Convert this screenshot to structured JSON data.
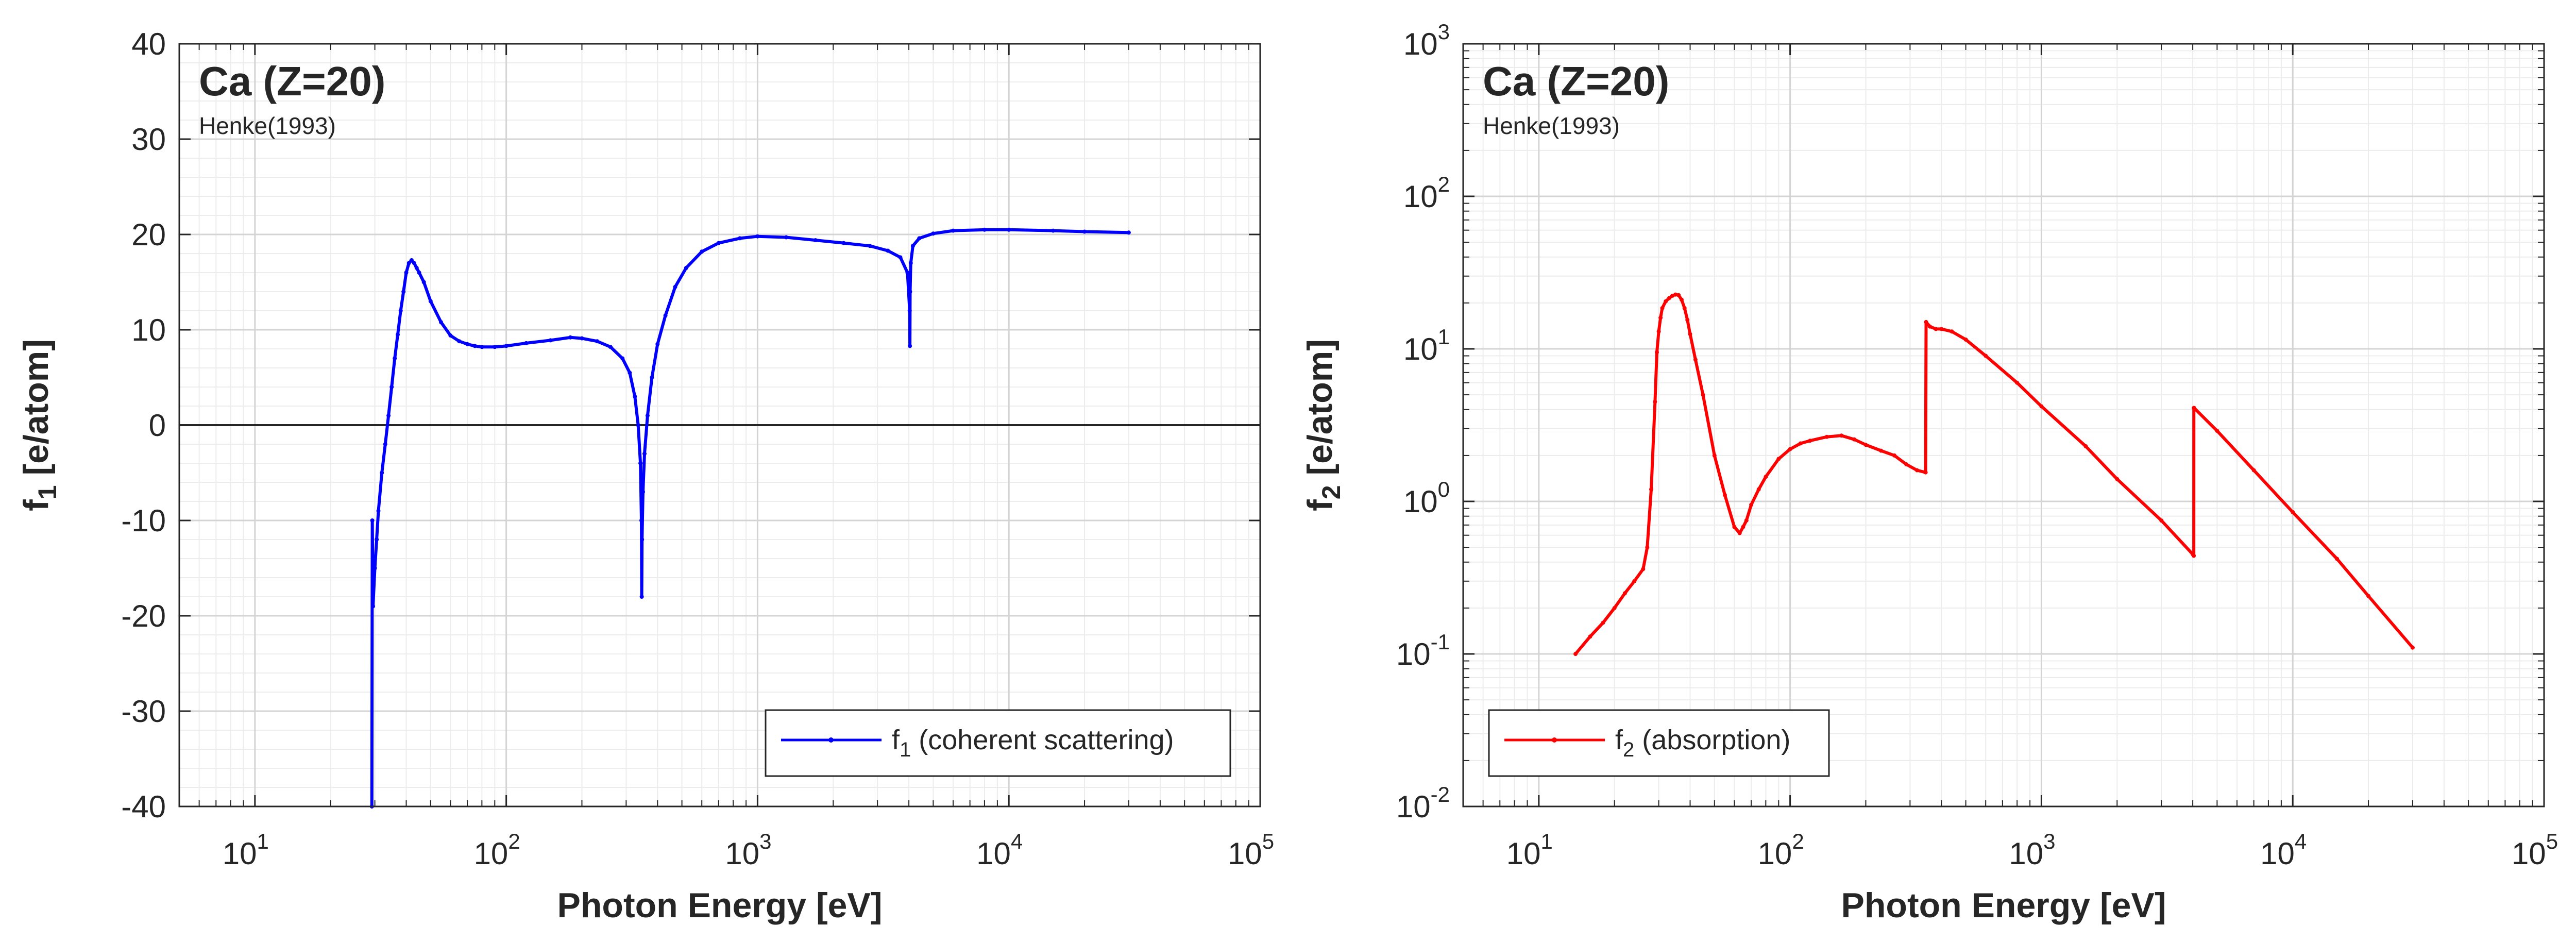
{
  "chart_data": [
    {
      "type": "line",
      "title": "Ca (Z=20)",
      "subtitle": "Henke(1993)",
      "xlabel": "Photon Energy [eV]",
      "ylabel_main": "f",
      "ylabel_sub": "1",
      "ylabel_rest": " [e/atom]",
      "xscale": "log",
      "yscale": "linear",
      "xlim": [
        5,
        100000
      ],
      "ylim": [
        -40,
        40
      ],
      "grid": true,
      "legend_position": "bottom-right",
      "x_ticks": [
        {
          "v": 10,
          "base": "10",
          "exp": "1"
        },
        {
          "v": 100,
          "base": "10",
          "exp": "2"
        },
        {
          "v": 1000,
          "base": "10",
          "exp": "3"
        },
        {
          "v": 10000,
          "base": "10",
          "exp": "4"
        },
        {
          "v": 100000,
          "base": "10",
          "exp": "5"
        }
      ],
      "y_ticks": [
        {
          "v": 40,
          "label": "40"
        },
        {
          "v": 30,
          "label": "30"
        },
        {
          "v": 20,
          "label": "20"
        },
        {
          "v": 10,
          "label": "10"
        },
        {
          "v": 0,
          "label": "0"
        },
        {
          "v": -10,
          "label": "-10"
        },
        {
          "v": -20,
          "label": "-20"
        },
        {
          "v": -30,
          "label": "-30"
        },
        {
          "v": -40,
          "label": "-40"
        }
      ],
      "zero_line": true,
      "series": [
        {
          "name_main": "f",
          "name_sub": "1",
          "name_rest": " (coherent scattering)",
          "color": "#0000ff",
          "x": [
            29.2,
            29.3,
            29.5,
            30,
            30.5,
            31,
            32,
            33,
            34,
            35,
            36,
            37,
            38,
            39,
            40,
            41,
            42,
            43,
            44,
            45,
            47,
            50,
            55,
            60,
            65,
            70,
            75,
            80,
            90,
            100,
            120,
            150,
            180,
            200,
            230,
            260,
            290,
            310,
            325,
            335,
            342,
            345,
            346,
            347,
            350,
            355,
            365,
            380,
            400,
            430,
            470,
            520,
            600,
            700,
            850,
            1000,
            1300,
            1700,
            2200,
            2800,
            3300,
            3700,
            3950,
            4030,
            4038,
            4045,
            4070,
            4150,
            4400,
            5000,
            6000,
            8000,
            10000,
            15000,
            20000,
            30000
          ],
          "y": [
            -40,
            -10,
            -19,
            -15,
            -12,
            -9,
            -5,
            -2,
            1,
            4,
            7,
            9.5,
            12,
            14,
            16,
            17,
            17.3,
            17,
            16.5,
            16,
            15,
            13,
            10.8,
            9.4,
            8.8,
            8.5,
            8.3,
            8.2,
            8.2,
            8.3,
            8.6,
            8.9,
            9.2,
            9.1,
            8.8,
            8.2,
            7,
            5.5,
            3,
            0,
            -4,
            -10,
            -18,
            -12,
            -7,
            -3,
            1,
            5,
            8.5,
            11.5,
            14.5,
            16.5,
            18.2,
            19.1,
            19.6,
            19.8,
            19.7,
            19.4,
            19.1,
            18.8,
            18.3,
            17.6,
            16,
            12,
            8.3,
            14,
            17,
            18.8,
            19.6,
            20.1,
            20.4,
            20.5,
            20.5,
            20.4,
            20.3,
            20.2
          ]
        }
      ]
    },
    {
      "type": "line",
      "title": "Ca (Z=20)",
      "subtitle": "Henke(1993)",
      "xlabel": "Photon Energy [eV]",
      "ylabel_main": "f",
      "ylabel_sub": "2",
      "ylabel_rest": " [e/atom]",
      "xscale": "log",
      "yscale": "log",
      "xlim": [
        5,
        100000
      ],
      "ylim": [
        0.01,
        1000
      ],
      "grid": true,
      "legend_position": "bottom-left",
      "x_ticks": [
        {
          "v": 10,
          "base": "10",
          "exp": "1"
        },
        {
          "v": 100,
          "base": "10",
          "exp": "2"
        },
        {
          "v": 1000,
          "base": "10",
          "exp": "3"
        },
        {
          "v": 10000,
          "base": "10",
          "exp": "4"
        },
        {
          "v": 100000,
          "base": "10",
          "exp": "5"
        }
      ],
      "y_ticks": [
        {
          "v": 1000,
          "base": "10",
          "exp": "3"
        },
        {
          "v": 100,
          "base": "10",
          "exp": "2"
        },
        {
          "v": 10,
          "base": "10",
          "exp": "1"
        },
        {
          "v": 1,
          "base": "10",
          "exp": "0"
        },
        {
          "v": 0.1,
          "base": "10",
          "exp": "-1"
        },
        {
          "v": 0.01,
          "base": "10",
          "exp": "-2"
        }
      ],
      "zero_line": false,
      "series": [
        {
          "name_main": "f",
          "name_sub": "2",
          "name_rest": " (absorption)",
          "color": "#ff0000",
          "x": [
            14,
            16,
            18,
            20,
            22,
            24,
            26,
            27,
            28,
            29,
            29.5,
            30,
            30.5,
            31,
            32,
            33,
            34,
            35,
            36,
            37,
            38,
            39,
            40,
            42,
            45,
            50,
            55,
            60,
            63,
            65,
            67,
            70,
            75,
            80,
            90,
            100,
            110,
            120,
            140,
            160,
            180,
            200,
            230,
            260,
            290,
            320,
            346,
            347.5,
            360,
            380,
            400,
            440,
            500,
            600,
            800,
            1000,
            1500,
            2000,
            3000,
            4000,
            4038,
            4040,
            4050,
            5000,
            7000,
            10000,
            15000,
            20000,
            30000
          ],
          "y": [
            0.1,
            0.13,
            0.16,
            0.2,
            0.25,
            0.3,
            0.36,
            0.5,
            1.2,
            4.5,
            9.5,
            13,
            16,
            18.5,
            20.5,
            21.5,
            22.3,
            22.7,
            22.5,
            21,
            18.5,
            15.5,
            12.5,
            8.5,
            5,
            2,
            1.1,
            0.68,
            0.62,
            0.68,
            0.75,
            0.95,
            1.2,
            1.45,
            1.9,
            2.2,
            2.4,
            2.5,
            2.65,
            2.7,
            2.55,
            2.35,
            2.15,
            2.0,
            1.75,
            1.6,
            1.55,
            15,
            14,
            13.5,
            13.5,
            13,
            11.5,
            9,
            6,
            4.2,
            2.3,
            1.4,
            0.75,
            0.45,
            0.44,
            4.1,
            4.1,
            2.9,
            1.6,
            0.85,
            0.42,
            0.24,
            0.11
          ]
        }
      ]
    }
  ]
}
